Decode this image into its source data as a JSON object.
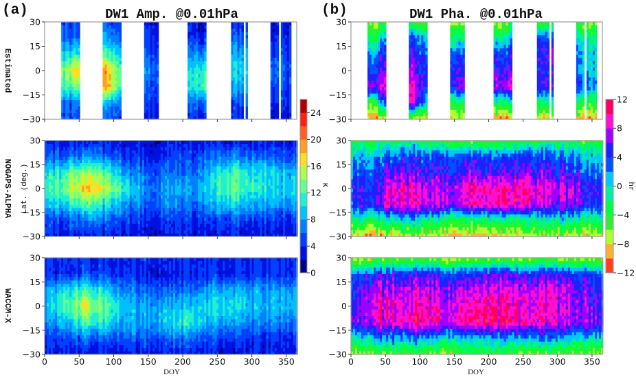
{
  "panel_labels": {
    "a": "(a)",
    "b": "(b)"
  },
  "chart_data": [
    {
      "type": "heatmap",
      "title": "DW1 Amp. @0.01hPa",
      "colorbar": {
        "label": "K",
        "levels_min": 0,
        "levels_max": 26,
        "level_step": 2,
        "tick_labels": [
          "0",
          "4",
          "8",
          "12",
          "16",
          "20",
          "24"
        ],
        "colors": [
          "#00008b",
          "#0010e0",
          "#0040ff",
          "#0080ff",
          "#00c0ff",
          "#20f0d0",
          "#60ff90",
          "#a8ff50",
          "#ffe020",
          "#ffa020",
          "#ff6020",
          "#ff2010",
          "#b00000"
        ]
      },
      "xlabel": "DOY",
      "ylabel": "Lat. (deg.)",
      "xlim": [
        0,
        365
      ],
      "ylim": [
        -30,
        30
      ],
      "x_ticks": [
        "0",
        "50",
        "100",
        "150",
        "200",
        "250",
        "300",
        "350"
      ],
      "y_ticks": [
        "30",
        "15",
        "0",
        "-15",
        "-30"
      ],
      "grid_lat": [
        -30,
        -20,
        -10,
        0,
        10,
        20,
        30
      ],
      "grid_doy": [
        0,
        30,
        60,
        90,
        120,
        150,
        180,
        210,
        240,
        270,
        300,
        330,
        360
      ],
      "rows": [
        {
          "name": "Estimated",
          "observed_doy_ranges": [
            [
              23,
              51
            ],
            [
              83,
              111
            ],
            [
              144,
              166
            ],
            [
              206,
              234
            ],
            [
              266,
              268
            ],
            [
              270,
              288
            ],
            [
              292,
              295
            ],
            [
              327,
              338
            ],
            [
              341,
              356
            ]
          ],
          "values": [
            [
              4,
              5,
              5,
              5,
              4,
              3,
              3,
              4,
              5,
              4,
              4,
              3,
              3
            ],
            [
              5,
              6,
              7,
              8,
              6,
              4,
              5,
              6,
              7,
              5,
              5,
              4,
              4
            ],
            [
              8,
              12,
              14,
              18,
              9,
              5,
              6,
              10,
              14,
              8,
              8,
              5,
              5
            ],
            [
              10,
              14,
              20,
              18,
              10,
              6,
              7,
              10,
              13,
              10,
              9,
              6,
              6
            ],
            [
              8,
              10,
              12,
              12,
              8,
              5,
              5,
              7,
              9,
              9,
              7,
              5,
              5
            ],
            [
              5,
              6,
              6,
              7,
              6,
              4,
              4,
              4,
              5,
              6,
              5,
              4,
              4
            ],
            [
              4,
              5,
              5,
              5,
              4,
              3,
              3,
              3,
              3,
              4,
              4,
              3,
              3
            ]
          ]
        },
        {
          "name": "NOGAPS-ALPHA",
          "values": [
            [
              3,
              3,
              3,
              3,
              3,
              3,
              3,
              3,
              3,
              3,
              3,
              3,
              3
            ],
            [
              4,
              5,
              6,
              6,
              5,
              4,
              4,
              4,
              4,
              5,
              5,
              4,
              4
            ],
            [
              8,
              10,
              12,
              10,
              8,
              6,
              7,
              6,
              8,
              10,
              9,
              8,
              8
            ],
            [
              10,
              14,
              18,
              15,
              11,
              7,
              8,
              8,
              10,
              13,
              12,
              10,
              10
            ],
            [
              9,
              12,
              14,
              12,
              8,
              6,
              6,
              6,
              9,
              12,
              11,
              10,
              9
            ],
            [
              5,
              6,
              7,
              6,
              5,
              4,
              4,
              5,
              6,
              7,
              7,
              6,
              5
            ],
            [
              3,
              3,
              3,
              3,
              3,
              3,
              3,
              3,
              3,
              3,
              3,
              3,
              3
            ]
          ]
        },
        {
          "name": "WACCM-X",
          "values": [
            [
              3,
              3,
              3,
              3,
              3,
              3,
              3,
              3,
              3,
              3,
              3,
              3,
              3
            ],
            [
              4,
              5,
              6,
              6,
              6,
              5,
              6,
              6,
              5,
              5,
              4,
              4,
              4
            ],
            [
              7,
              9,
              12,
              11,
              8,
              8,
              10,
              11,
              8,
              9,
              7,
              7,
              7
            ],
            [
              9,
              12,
              16,
              13,
              9,
              8,
              9,
              9,
              10,
              11,
              9,
              9,
              9
            ],
            [
              8,
              10,
              12,
              10,
              7,
              6,
              6,
              6,
              8,
              9,
              8,
              8,
              8
            ],
            [
              4,
              4,
              5,
              5,
              4,
              3,
              3,
              3,
              4,
              4,
              4,
              4,
              4
            ],
            [
              4,
              4,
              4,
              4,
              4,
              4,
              4,
              4,
              4,
              4,
              4,
              4,
              4
            ]
          ]
        }
      ]
    },
    {
      "type": "heatmap",
      "title": "DW1 Pha. @0.01hPa",
      "colorbar": {
        "label": "hr",
        "levels_min": -12,
        "levels_max": 12,
        "level_step": 2,
        "tick_labels": [
          "-12",
          "-8",
          "-4",
          "0",
          "4",
          "8",
          "12"
        ],
        "colors": [
          "#ff4020",
          "#ffb030",
          "#b0ff30",
          "#30f030",
          "#00ff40",
          "#00f0a0",
          "#00c8ff",
          "#0050ff",
          "#2020ff",
          "#a000ff",
          "#ff10d0",
          "#ff0060"
        ]
      },
      "xlabel": "DOY",
      "xlim": [
        0,
        365
      ],
      "ylim": [
        -30,
        30
      ],
      "x_ticks": [
        "0",
        "50",
        "100",
        "150",
        "200",
        "250",
        "300",
        "350"
      ],
      "y_ticks": [
        "30",
        "15",
        "0",
        "-15",
        "-30"
      ],
      "grid_lat": [
        -30,
        -20,
        -10,
        0,
        10,
        20,
        30
      ],
      "grid_doy": [
        0,
        30,
        60,
        90,
        120,
        150,
        180,
        210,
        240,
        270,
        300,
        330,
        360
      ],
      "rows": [
        {
          "name": "Estimated",
          "observed_doy_ranges": [
            [
              23,
              51
            ],
            [
              83,
              111
            ],
            [
              144,
              166
            ],
            [
              206,
              234
            ],
            [
              266,
              268
            ],
            [
              270,
              288
            ],
            [
              292,
              295
            ],
            [
              327,
              338
            ],
            [
              341,
              356
            ]
          ],
          "values": [
            [
              -9,
              -9,
              -9,
              -9,
              -9,
              -8,
              -8,
              -9,
              -9,
              -9,
              -9,
              -9,
              -9
            ],
            [
              -5,
              -5,
              8,
              8,
              -3,
              -4,
              -4,
              -2,
              -3,
              -3,
              -3,
              -4,
              -4
            ],
            [
              7,
              8,
              8,
              8,
              3,
              5,
              8,
              8,
              8,
              5,
              5,
              3,
              3
            ],
            [
              3,
              4,
              6,
              6,
              4,
              4,
              6,
              6,
              5,
              4,
              4,
              1,
              1
            ],
            [
              2,
              3,
              5,
              5,
              3,
              3,
              5,
              5,
              4,
              4,
              6,
              1,
              1
            ],
            [
              -2,
              -2,
              2,
              3,
              0,
              -2,
              -2,
              -1,
              2,
              3,
              3,
              -1,
              -1
            ],
            [
              -6,
              -6,
              -5,
              -5,
              -6,
              -7,
              -7,
              -6,
              -6,
              -6,
              -6,
              -6,
              -6
            ]
          ]
        },
        {
          "name": "NOGAPS-ALPHA",
          "values": [
            [
              -8,
              -9,
              -8,
              -7,
              -8,
              -8,
              -9,
              -8,
              -8,
              -7,
              -8,
              -8,
              -8
            ],
            [
              -2,
              -3,
              -1,
              0,
              -2,
              -4,
              -3,
              -2,
              -3,
              -2,
              -1,
              -2,
              -2
            ],
            [
              4,
              6,
              9,
              9,
              8,
              7,
              9,
              10,
              9,
              8,
              7,
              6,
              4
            ],
            [
              4,
              5,
              9,
              9,
              7,
              8,
              10,
              10,
              10,
              9,
              8,
              7,
              5
            ],
            [
              3,
              4,
              6,
              6,
              5,
              5,
              6,
              6,
              6,
              6,
              5,
              4,
              3
            ],
            [
              0,
              2,
              3,
              4,
              4,
              4,
              4,
              4,
              4,
              4,
              3,
              2,
              0
            ],
            [
              -4,
              -3,
              -2,
              -2,
              -4,
              -5,
              -5,
              -4,
              -4,
              -3,
              -3,
              -4,
              -4
            ]
          ]
        },
        {
          "name": "WACCM-X",
          "values": [
            [
              -6,
              -6,
              -5,
              -5,
              -6,
              -6,
              -5,
              -5,
              -5,
              -6,
              -6,
              -6,
              -6
            ],
            [
              0,
              1,
              2,
              2,
              1,
              0,
              0,
              1,
              1,
              2,
              1,
              0,
              0
            ],
            [
              7,
              8,
              9,
              10,
              9,
              9,
              10,
              10,
              10,
              9,
              8,
              7,
              7
            ],
            [
              6,
              8,
              9,
              9,
              9,
              8,
              9,
              10,
              9,
              9,
              8,
              7,
              6
            ],
            [
              5,
              7,
              8,
              8,
              8,
              7,
              7,
              8,
              8,
              8,
              8,
              6,
              5
            ],
            [
              4,
              4,
              5,
              5,
              5,
              4,
              4,
              5,
              5,
              5,
              5,
              4,
              4
            ],
            [
              -7,
              -7,
              -6,
              -6,
              -6,
              -7,
              -7,
              -6,
              -6,
              -6,
              -7,
              -7,
              -7
            ]
          ]
        }
      ]
    }
  ]
}
